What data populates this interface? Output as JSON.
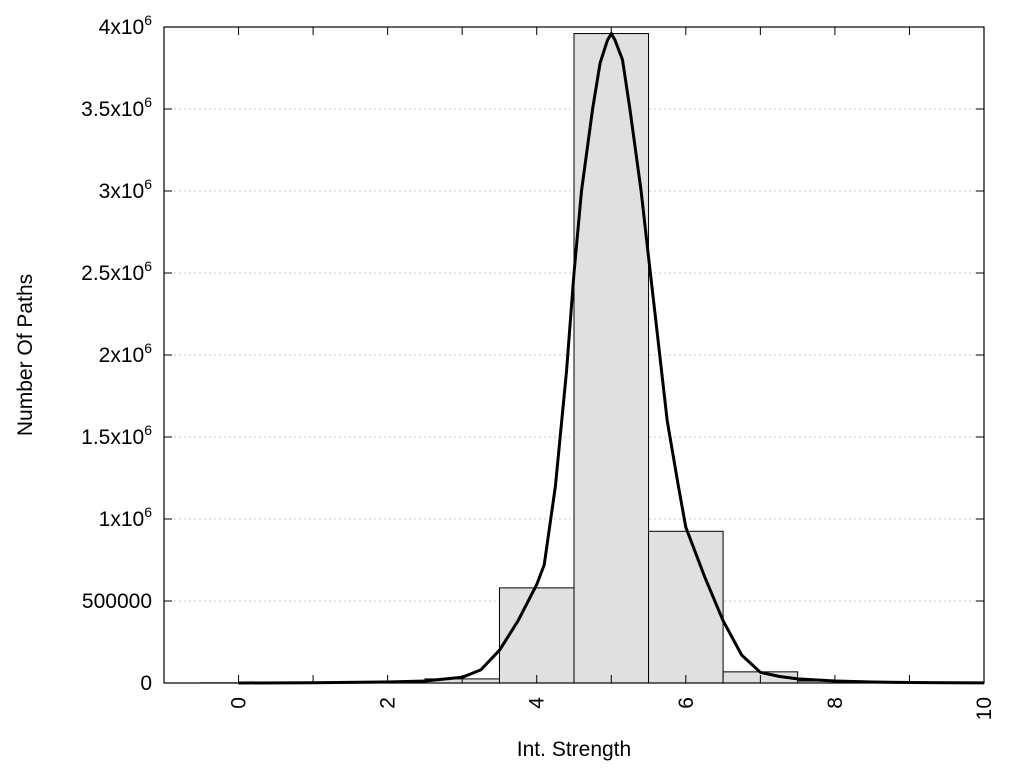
{
  "chart_data": {
    "type": "bar",
    "xlabel": "Int. Strength",
    "ylabel": "Number Of Paths",
    "xlim": [
      -1,
      10
    ],
    "ylim": [
      0,
      4000000
    ],
    "grid": true,
    "x_ticks": [
      {
        "value": 0,
        "label": "0"
      },
      {
        "value": 2,
        "label": "2"
      },
      {
        "value": 4,
        "label": "4"
      },
      {
        "value": 6,
        "label": "6"
      },
      {
        "value": 8,
        "label": "8"
      },
      {
        "value": 10,
        "label": "10"
      }
    ],
    "x_minor_ticks": [
      1,
      3,
      5,
      7,
      9
    ],
    "y_ticks": [
      {
        "value": 0,
        "base": "0",
        "exp": ""
      },
      {
        "value": 500000,
        "base": "500000",
        "exp": ""
      },
      {
        "value": 1000000,
        "base": "1x10",
        "exp": "6"
      },
      {
        "value": 1500000,
        "base": "1.5x10",
        "exp": "6"
      },
      {
        "value": 2000000,
        "base": "2x10",
        "exp": "6"
      },
      {
        "value": 2500000,
        "base": "2.5x10",
        "exp": "6"
      },
      {
        "value": 3000000,
        "base": "3x10",
        "exp": "6"
      },
      {
        "value": 3500000,
        "base": "3.5x10",
        "exp": "6"
      },
      {
        "value": 4000000,
        "base": "4x10",
        "exp": "6"
      }
    ],
    "bar_width": 1,
    "bars": {
      "x": [
        0,
        1,
        2,
        3,
        4,
        5,
        6,
        7,
        8,
        9
      ],
      "values": [
        1000,
        2000,
        5000,
        25000,
        580000,
        3960000,
        925000,
        68000,
        12000,
        3000
      ]
    },
    "fit_curve": {
      "x": [
        0,
        1,
        2,
        2.5,
        3,
        3.25,
        3.5,
        3.75,
        4,
        4.1,
        4.25,
        4.4,
        4.5,
        4.6,
        4.75,
        4.85,
        4.95,
        5,
        5.05,
        5.15,
        5.25,
        5.4,
        5.5,
        5.6,
        5.75,
        5.9,
        6,
        6.25,
        6.5,
        6.75,
        7,
        7.25,
        7.5,
        8,
        8.5,
        9,
        9.5,
        10
      ],
      "y": [
        0,
        2000,
        6000,
        12000,
        35000,
        80000,
        200000,
        380000,
        600000,
        720000,
        1200000,
        1900000,
        2500000,
        3000000,
        3500000,
        3780000,
        3920000,
        3960000,
        3920000,
        3800000,
        3500000,
        3000000,
        2600000,
        2200000,
        1600000,
        1200000,
        950000,
        650000,
        380000,
        170000,
        65000,
        40000,
        25000,
        12000,
        6000,
        3000,
        1500,
        500
      ]
    },
    "colors": {
      "bar_fill": "#e0e0e0",
      "bar_stroke": "#000000",
      "curve": "#000000",
      "grid": "#c8c8c8"
    }
  }
}
